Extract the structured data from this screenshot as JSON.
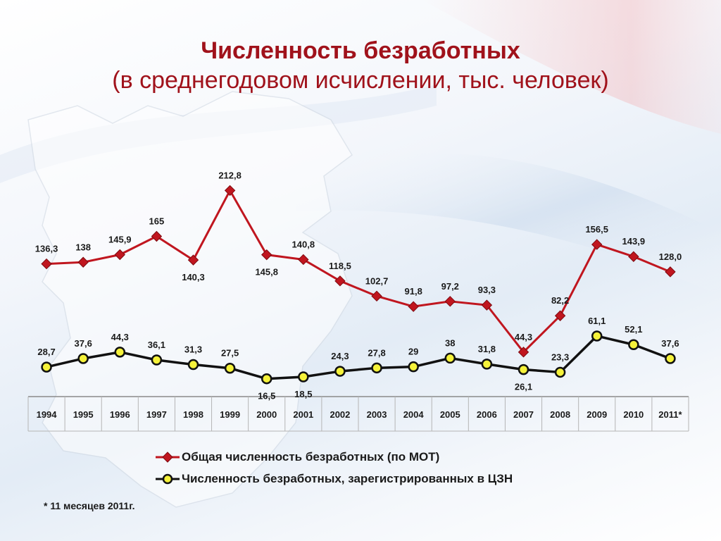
{
  "title": "Численность безработных",
  "subtitle": "(в среднегодовом исчислении, тыс. человек)",
  "footnote": "* 11 месяцев 2011г.",
  "colors": {
    "title": "#a0121b",
    "series_red": "#c0161f",
    "series_black": "#111111",
    "marker_yellow": "#f5f23a"
  },
  "chart_data": {
    "type": "line",
    "categories": [
      "1994",
      "1995",
      "1996",
      "1997",
      "1998",
      "1999",
      "2000",
      "2001",
      "2002",
      "2003",
      "2004",
      "2005",
      "2006",
      "2007",
      "2008",
      "2009",
      "2010",
      "2011*"
    ],
    "series": [
      {
        "name": "Общая численность безработных (по МОТ)",
        "marker": "diamond",
        "color": "#c0161f",
        "values": [
          136.3,
          138,
          145.9,
          165,
          140.3,
          212.8,
          145.8,
          140.8,
          118.5,
          102.7,
          91.8,
          97.2,
          93.3,
          44.3,
          82.2,
          156.5,
          143.9,
          128.0
        ],
        "labels": [
          "136,3",
          "138",
          "145,9",
          "165",
          "140,3",
          "212,8",
          "145,8",
          "140,8",
          "118,5",
          "102,7",
          "91,8",
          "97,2",
          "93,3",
          "44,3",
          "82,2",
          "156,5",
          "143,9",
          "128,0"
        ]
      },
      {
        "name": "Численность безработных, зарегистрированных в ЦЗН",
        "marker": "circle",
        "color": "#111111",
        "values": [
          28.7,
          37.6,
          44.3,
          36.1,
          31.3,
          27.5,
          16.5,
          18.5,
          24.3,
          27.8,
          29,
          38,
          31.8,
          26.1,
          23.3,
          61.1,
          52.1,
          37.6
        ],
        "labels": [
          "28,7",
          "37,6",
          "44,3",
          "36,1",
          "31,3",
          "27,5",
          "16,5",
          "18,5",
          "24,3",
          "27,8",
          "29",
          "38",
          "31,8",
          "26,1",
          "23,3",
          "61,1",
          "52,1",
          "37,6"
        ]
      }
    ],
    "legend_position": "bottom",
    "grid": false
  }
}
